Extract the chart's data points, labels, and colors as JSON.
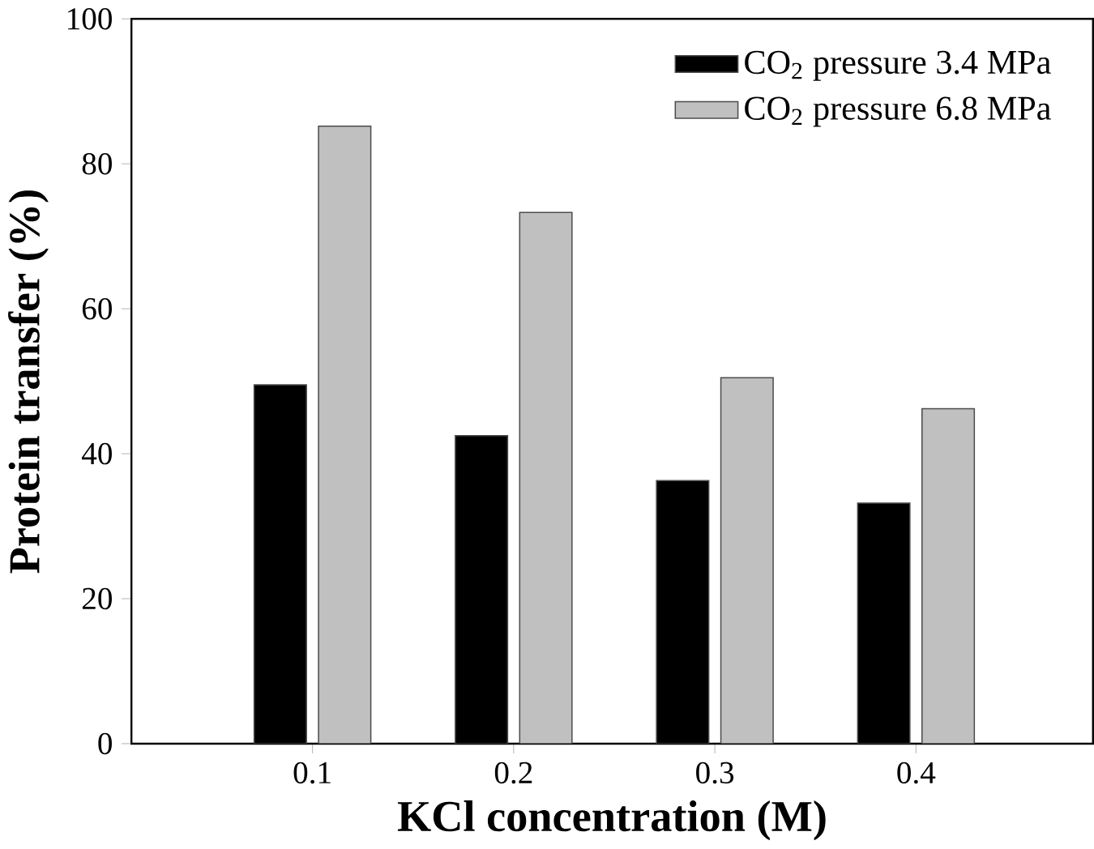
{
  "chart_data": {
    "type": "bar",
    "xlabel": "KCl concentration (M)",
    "ylabel": "Protein transfer (%)",
    "categories": [
      "0.1",
      "0.2",
      "0.3",
      "0.4"
    ],
    "series": [
      {
        "name": "CO$_{2}$ pressure 3.4 MPa",
        "color": "#000000",
        "values": [
          49.5,
          42.5,
          36.3,
          33.2
        ]
      },
      {
        "name": "CO$_{2}$ pressure 6.8 MPa",
        "color": "#c0c0c0",
        "values": [
          85.2,
          73.3,
          50.5,
          46.2
        ]
      }
    ],
    "ylim": [
      0,
      100
    ],
    "yticks": [
      0,
      20,
      40,
      60,
      80,
      100
    ],
    "legend": "top right",
    "grid": false
  }
}
